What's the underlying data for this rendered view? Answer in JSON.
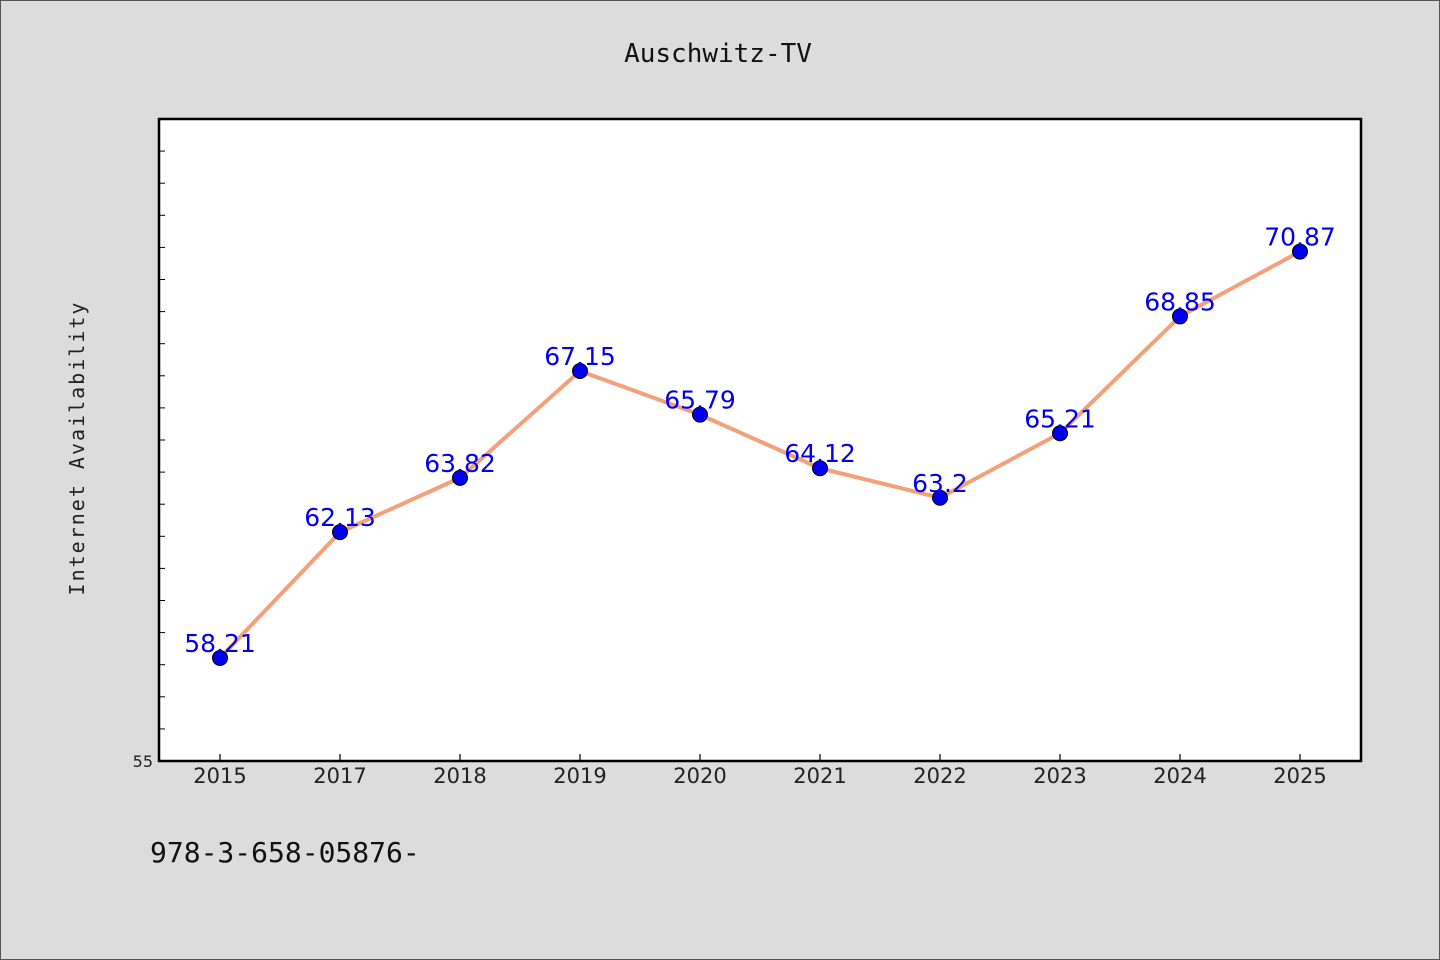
{
  "chart_data": {
    "type": "line",
    "title": "Auschwitz-TV",
    "xlabel": "",
    "ylabel": "Internet Availability",
    "categories": [
      "2015",
      "2017",
      "2018",
      "2019",
      "2020",
      "2021",
      "2022",
      "2023",
      "2024",
      "2025"
    ],
    "series": [
      {
        "values": [
          58.21,
          62.13,
          63.82,
          67.15,
          65.79,
          64.12,
          63.2,
          65.21,
          68.85,
          70.87
        ],
        "labels": [
          "58.21",
          "62.13",
          "63.82",
          "67.15",
          "65.79",
          "64.12",
          "63.2",
          "65.21",
          "68.85",
          "70.87"
        ]
      }
    ],
    "ylim": [
      55,
      75
    ],
    "yticks": [
      55
    ],
    "y_minor_step": 1,
    "grid": false,
    "line_color": "#f4a07a",
    "marker_color": "#0000ee",
    "label_color": "#0000ee"
  },
  "footer": {
    "text": "978-3-658-05876-"
  }
}
